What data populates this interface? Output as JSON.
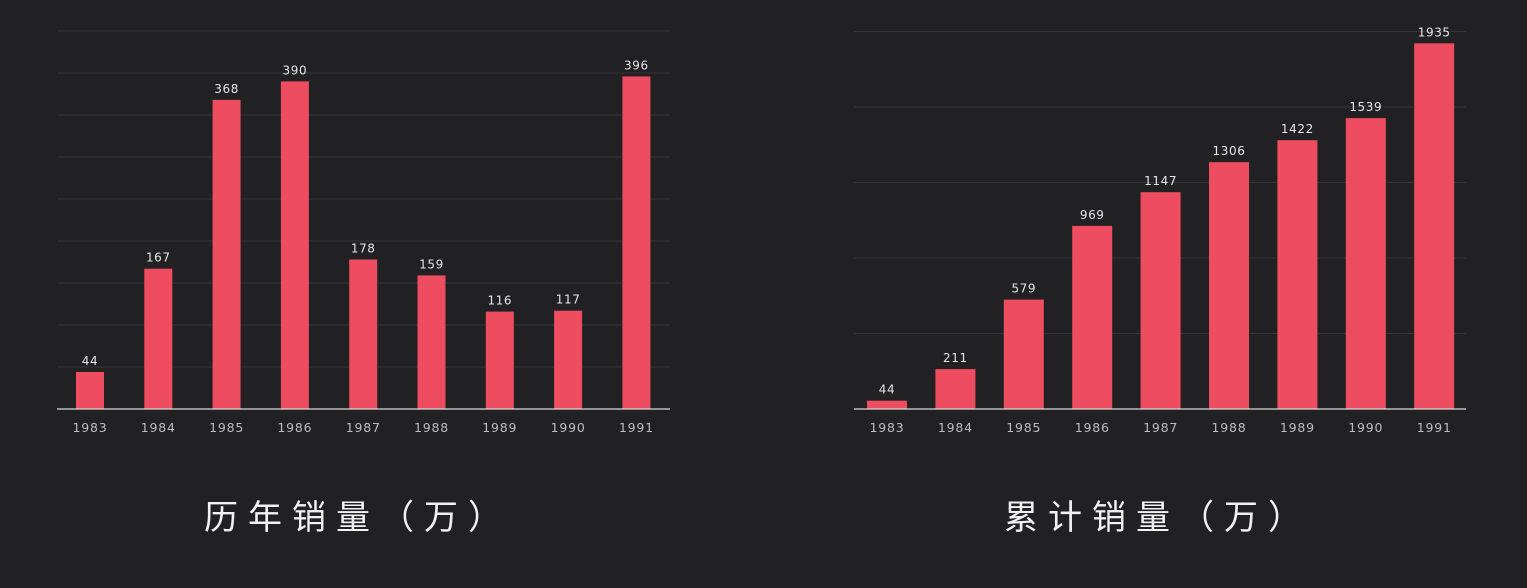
{
  "colors": {
    "background": "#212023",
    "bar": "#ee4d61",
    "grid": "#35343a",
    "axis": "#d9d9d9",
    "label": "#e6e6e6"
  },
  "chart_data": [
    {
      "type": "bar",
      "title": "历年销量（万）",
      "categories": [
        "1983",
        "1984",
        "1985",
        "1986",
        "1987",
        "1988",
        "1989",
        "1990",
        "1991"
      ],
      "values": [
        44,
        167,
        368,
        390,
        178,
        159,
        116,
        117,
        396
      ],
      "ylim": [
        0,
        450
      ],
      "grid": true,
      "data_labels": true
    },
    {
      "type": "bar",
      "title": "累计销量（万）",
      "categories": [
        "1983",
        "1984",
        "1985",
        "1986",
        "1987",
        "1988",
        "1989",
        "1990",
        "1991"
      ],
      "values": [
        44,
        211,
        579,
        969,
        1147,
        1306,
        1422,
        1539,
        1935
      ],
      "ylim": [
        0,
        2000
      ],
      "grid": true,
      "data_labels": true
    }
  ]
}
